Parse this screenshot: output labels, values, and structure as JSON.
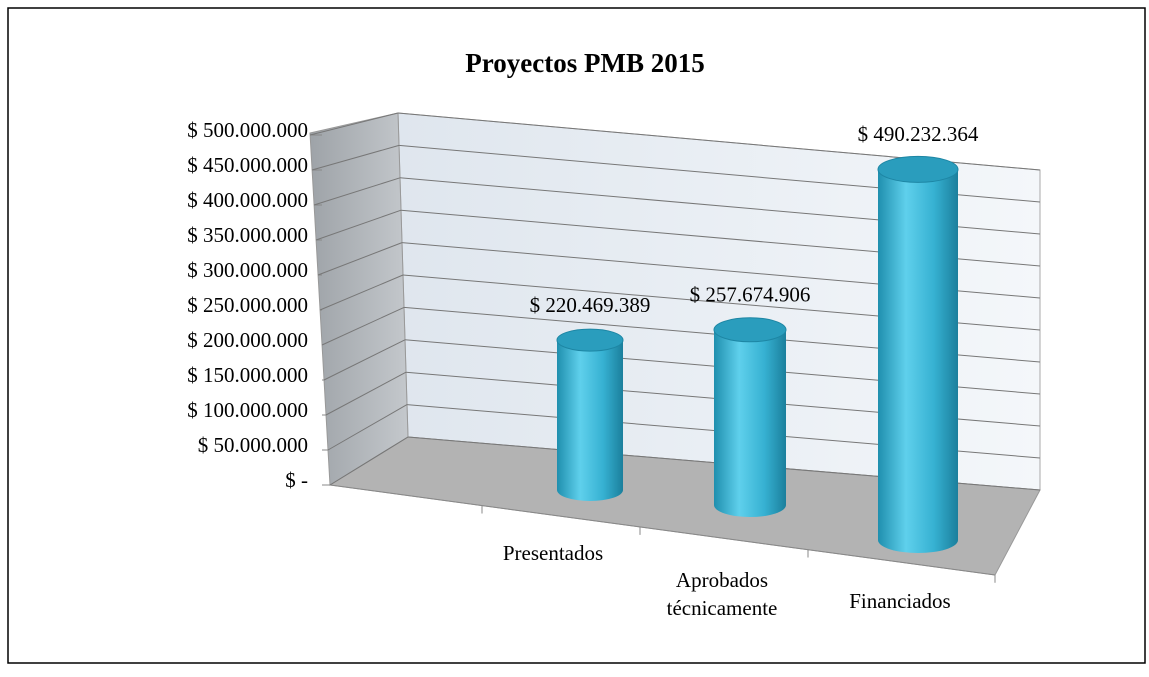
{
  "chart_data": {
    "type": "bar3d",
    "title": "Proyectos PMB 2015",
    "categories": [
      "Presentados",
      "Aprobados técnicamente",
      "Financiados"
    ],
    "values": [
      220469389,
      257674906,
      490232364
    ],
    "value_labels": [
      "$ 220.469.389",
      "$ 257.674.906",
      "$ 490.232.364"
    ],
    "color": "#3bb3d3",
    "ylim": [
      0,
      500000000
    ],
    "yticks": [
      {
        "value": 0,
        "label": "$ -"
      },
      {
        "value": 50000000,
        "label": "$ 50.000.000"
      },
      {
        "value": 100000000,
        "label": "$ 100.000.000"
      },
      {
        "value": 150000000,
        "label": "$ 150.000.000"
      },
      {
        "value": 200000000,
        "label": "$ 200.000.000"
      },
      {
        "value": 250000000,
        "label": "$ 250.000.000"
      },
      {
        "value": 300000000,
        "label": "$ 300.000.000"
      },
      {
        "value": 350000000,
        "label": "$ 350.000.000"
      },
      {
        "value": 400000000,
        "label": "$ 400.000.000"
      },
      {
        "value": 450000000,
        "label": "$ 450.000.000"
      },
      {
        "value": 500000000,
        "label": "$ 500.000.000"
      }
    ],
    "grid": true
  }
}
